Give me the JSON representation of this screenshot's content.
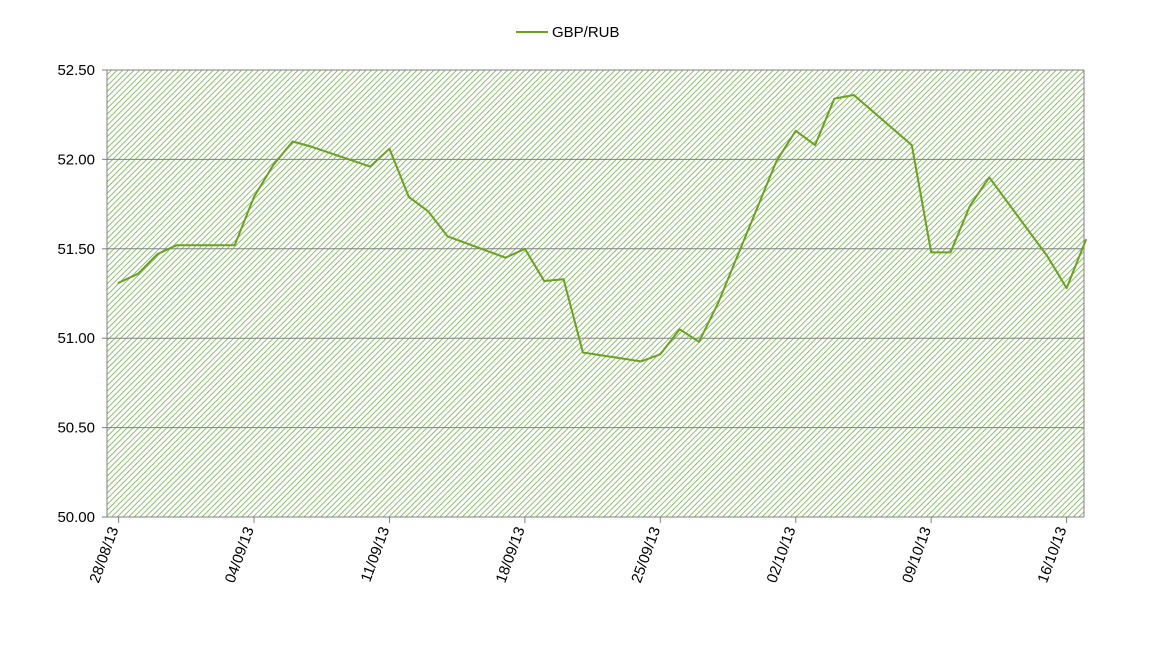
{
  "chart_data": {
    "type": "line",
    "title": "",
    "xlabel": "",
    "ylabel": "",
    "legend_position": "top-center",
    "grid": "horizontal",
    "ylim": [
      50.0,
      52.5
    ],
    "y_ticks": [
      "50.00",
      "50.50",
      "51.00",
      "51.50",
      "52.00",
      "52.50"
    ],
    "x_ticks": [
      "28/08/13",
      "04/09/13",
      "11/09/13",
      "18/09/13",
      "25/09/13",
      "02/10/13",
      "09/10/13",
      "16/10/13"
    ],
    "x_range": [
      "28/08/13",
      "16/10/13"
    ],
    "colors": {
      "series": "#6aa121",
      "hatch": "#6fb04a",
      "gridline": "#808080",
      "axis": "#808080"
    },
    "series": [
      {
        "name": "GBP/RUB",
        "x": [
          "28/08/13",
          "29/08/13",
          "30/08/13",
          "31/08/13",
          "03/09/13",
          "04/09/13",
          "05/09/13",
          "06/09/13",
          "07/09/13",
          "10/09/13",
          "11/09/13",
          "12/09/13",
          "13/09/13",
          "14/09/13",
          "17/09/13",
          "18/09/13",
          "19/09/13",
          "20/09/13",
          "21/09/13",
          "24/09/13",
          "25/09/13",
          "26/09/13",
          "27/09/13",
          "28/09/13",
          "01/10/13",
          "02/10/13",
          "03/10/13",
          "04/10/13",
          "05/10/13",
          "08/10/13",
          "09/10/13",
          "10/10/13",
          "11/10/13",
          "12/10/13",
          "15/10/13",
          "16/10/13",
          "17/10/13"
        ],
        "values": [
          51.31,
          51.36,
          51.47,
          51.52,
          51.52,
          51.79,
          51.97,
          52.1,
          52.07,
          51.96,
          52.06,
          51.79,
          51.71,
          51.57,
          51.45,
          51.5,
          51.32,
          51.33,
          50.92,
          50.87,
          50.91,
          51.05,
          50.98,
          51.2,
          51.99,
          52.16,
          52.08,
          52.34,
          52.36,
          52.08,
          51.48,
          51.48,
          51.74,
          51.9,
          51.46,
          51.28,
          51.55
        ]
      }
    ]
  }
}
